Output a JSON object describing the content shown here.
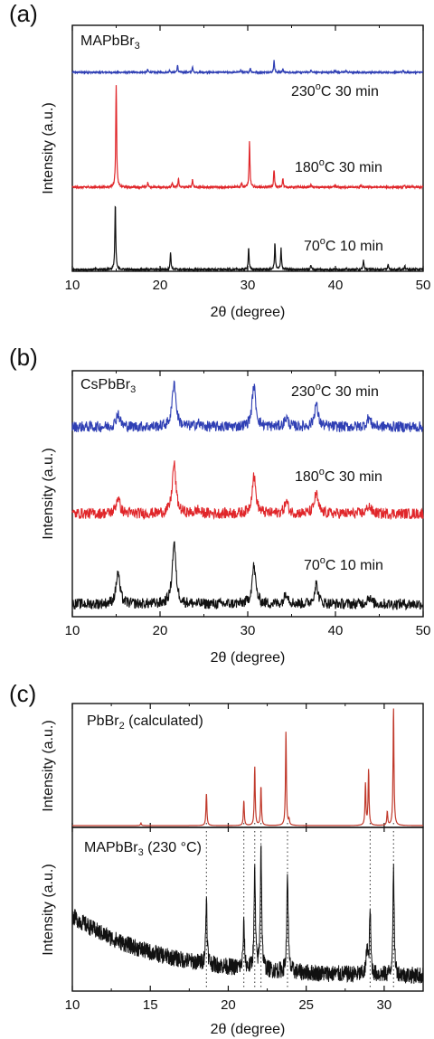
{
  "colors": {
    "blue": "#2f3fb4",
    "red": "#e0262a",
    "black": "#111111",
    "brown": "#c0392b"
  },
  "chart_data": [
    {
      "type": "line",
      "panel": "(a)",
      "sample_label": "MAPbBr",
      "sample_sub": "3",
      "ylabel": "Intensity (a.u.)",
      "xlabel": "2θ (degree)",
      "xlim": [
        10,
        50
      ],
      "xticks": [
        "10",
        "20",
        "30",
        "40",
        "50"
      ],
      "series": [
        {
          "name": "230°C 30 min",
          "color": "#2f3fb4",
          "label_parts": [
            "230",
            "o",
            "C 30 min"
          ],
          "peaks": [
            [
              18.6,
              0.6
            ],
            [
              21.1,
              0.5
            ],
            [
              22.0,
              1.5
            ],
            [
              23.7,
              1.2
            ],
            [
              29.2,
              0.6
            ],
            [
              30.3,
              1.0
            ],
            [
              33.0,
              2.6
            ],
            [
              34.0,
              0.7
            ],
            [
              37.2,
              0.5
            ],
            [
              40.0,
              0.4
            ],
            [
              41.2,
              0.4
            ],
            [
              47.7,
              0.5
            ]
          ]
        },
        {
          "name": "180°C 30 min",
          "color": "#e0262a",
          "label_parts": [
            "180",
            "o",
            "C 30 min"
          ],
          "peaks": [
            [
              15.0,
              18.0
            ],
            [
              18.6,
              0.8
            ],
            [
              21.4,
              0.7
            ],
            [
              22.1,
              1.5
            ],
            [
              23.7,
              1.4
            ],
            [
              29.3,
              0.8
            ],
            [
              30.2,
              8.0
            ],
            [
              33.0,
              3.1
            ],
            [
              34.0,
              1.6
            ],
            [
              37.2,
              0.4
            ],
            [
              40.0,
              0.3
            ],
            [
              42.9,
              0.3
            ],
            [
              47.9,
              0.3
            ]
          ]
        },
        {
          "name": "70°C 10 min",
          "color": "#111111",
          "label_parts": [
            "70",
            "o",
            "C 10 min"
          ],
          "peaks": [
            [
              14.9,
              11.0
            ],
            [
              21.2,
              2.9
            ],
            [
              30.1,
              3.7
            ],
            [
              33.1,
              4.4
            ],
            [
              33.8,
              3.6
            ],
            [
              37.2,
              0.8
            ],
            [
              43.2,
              1.6
            ],
            [
              46.0,
              0.8
            ],
            [
              47.9,
              0.7
            ]
          ]
        }
      ]
    },
    {
      "type": "line",
      "panel": "(b)",
      "sample_label": "CsPbBr",
      "sample_sub": "3",
      "ylabel": "Intensity (a.u.)",
      "xlabel": "2θ (degree)",
      "xlim": [
        10,
        50
      ],
      "xticks": [
        "10",
        "20",
        "30",
        "40",
        "50"
      ],
      "series": [
        {
          "name": "230°C 30 min",
          "color": "#2f3fb4",
          "label_parts": [
            "230",
            "o",
            "C 30 min"
          ],
          "peaks": [
            [
              15.2,
              1.5
            ],
            [
              21.6,
              5.0
            ],
            [
              24.3,
              0.4
            ],
            [
              30.7,
              4.5
            ],
            [
              34.4,
              1.0
            ],
            [
              37.8,
              2.5
            ],
            [
              43.8,
              1.0
            ]
          ]
        },
        {
          "name": "180°C 30 min",
          "color": "#e0262a",
          "label_parts": [
            "180",
            "o",
            "C 30 min"
          ],
          "peaks": [
            [
              15.2,
              1.8
            ],
            [
              21.6,
              5.5
            ],
            [
              24.3,
              0.4
            ],
            [
              30.7,
              4.2
            ],
            [
              34.4,
              1.3
            ],
            [
              37.8,
              2.2
            ],
            [
              43.8,
              0.9
            ]
          ]
        },
        {
          "name": "70°C 10 min",
          "color": "#111111",
          "label_parts": [
            "70",
            "o",
            "C 10 min"
          ],
          "peaks": [
            [
              15.2,
              3.5
            ],
            [
              21.6,
              6.8
            ],
            [
              30.7,
              4.2
            ],
            [
              34.4,
              1.3
            ],
            [
              37.8,
              2.2
            ],
            [
              43.8,
              0.8
            ]
          ]
        }
      ]
    },
    {
      "type": "line",
      "panel": "(c)",
      "ylabel_top": "Intensity (a.u.)",
      "ylabel_bottom": "Intensity (a.u.)",
      "xlabel": "2θ (degree)",
      "xlim": [
        10,
        32.5
      ],
      "xticks": [
        "10",
        "15",
        "20",
        "25",
        "30"
      ],
      "reference_lines": [
        18.6,
        21.0,
        21.7,
        22.1,
        23.8,
        29.1,
        30.6
      ],
      "series": [
        {
          "name": "PbBr2 (calculated)",
          "color": "#c0392b",
          "label_main": "PbBr",
          "label_sub": "2",
          "label_rest": " (calculated)",
          "peaks": [
            [
              14.4,
              0.4
            ],
            [
              18.6,
              5.0
            ],
            [
              21.0,
              3.8
            ],
            [
              21.7,
              9.0
            ],
            [
              22.1,
              6.0
            ],
            [
              23.7,
              14.5
            ],
            [
              23.9,
              0.8
            ],
            [
              28.8,
              6.4
            ],
            [
              29.0,
              8.5
            ],
            [
              30.2,
              2.1
            ],
            [
              30.6,
              18.0
            ]
          ]
        },
        {
          "name": "MAPbBr3 (230 °C)",
          "color": "#111111",
          "label_main": "MAPbBr",
          "label_sub": "3",
          "label_rest": " (230 °C)",
          "peaks": [
            [
              18.6,
              3.5
            ],
            [
              21.0,
              2.3
            ],
            [
              21.7,
              5.2
            ],
            [
              22.1,
              6.6
            ],
            [
              23.8,
              5.3
            ],
            [
              28.9,
              1.5
            ],
            [
              29.1,
              3.4
            ],
            [
              30.6,
              5.5
            ]
          ]
        }
      ]
    }
  ]
}
